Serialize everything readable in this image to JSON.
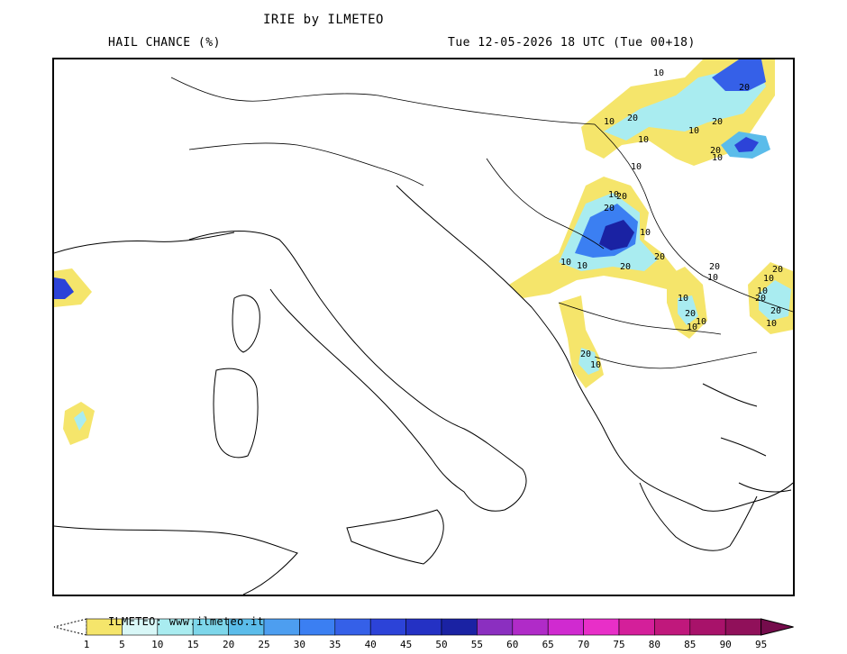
{
  "header": {
    "title": "IRIE by ILMETEO",
    "variable": "HAIL CHANCE (%)",
    "valid_time": "Tue 12-05-2026 18 UTC (Tue 00+18)"
  },
  "map": {
    "region": "Central Mediterranean / Italy / Balkans",
    "contour_labels": [
      "10",
      "20",
      "10",
      "20",
      "10",
      "20",
      "10",
      "20",
      "10",
      "10",
      "20",
      "10",
      "20",
      "10",
      "20",
      "10",
      "10",
      "20",
      "10",
      "20",
      "10",
      "20",
      "10",
      "20",
      "10",
      "20",
      "10",
      "10",
      "20",
      "10",
      "20",
      "10"
    ]
  },
  "legend": {
    "credit": "ILMETEO: www.ilmeteo.it",
    "ticks": [
      "1",
      "5",
      "10",
      "15",
      "20",
      "25",
      "30",
      "35",
      "40",
      "45",
      "50",
      "55",
      "60",
      "65",
      "70",
      "75",
      "80",
      "85",
      "90",
      "95"
    ],
    "colors": [
      "#f5e56b",
      "#d8f7f7",
      "#a9ecf0",
      "#7dd6ea",
      "#5bbcea",
      "#4d9ef0",
      "#3b7ff2",
      "#3560e8",
      "#2c43d8",
      "#2431c4",
      "#1a22a3",
      "#8b2fc0",
      "#b02bc8",
      "#d02ad0",
      "#e82fc8",
      "#d41f9a",
      "#c0187c",
      "#a8126a",
      "#90105a",
      "#750c4c"
    ]
  }
}
